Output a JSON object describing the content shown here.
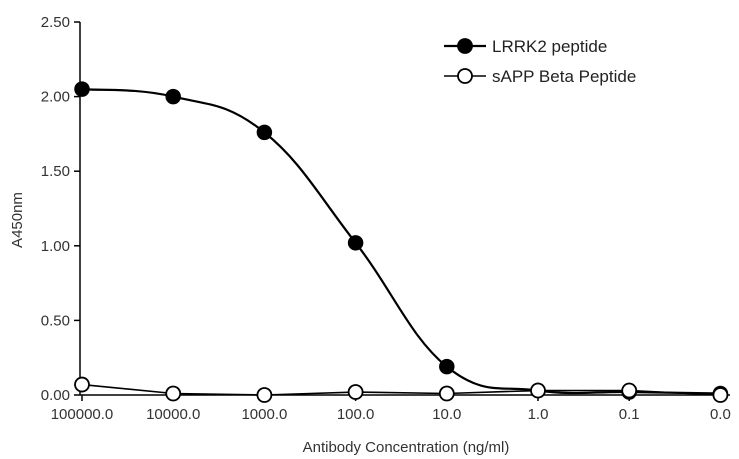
{
  "chart_data": {
    "type": "line",
    "xlabel": "Antibody Concentration (ng/ml)",
    "ylabel": "A450nm",
    "categories": [
      "100000.0",
      "10000.0",
      "1000.0",
      "100.0",
      "10.0",
      "1.0",
      "0.1",
      "0.0"
    ],
    "ylim": [
      0,
      2.5
    ],
    "yticks": [
      "0.00",
      "0.50",
      "1.00",
      "1.50",
      "2.00",
      "2.50"
    ],
    "ytick_values": [
      0,
      0.5,
      1.0,
      1.5,
      2.0,
      2.5
    ],
    "grid": false,
    "legend_position": "top-right",
    "series": [
      {
        "name": "LRRK2 peptide",
        "marker": "filled-circle",
        "color": "#000000",
        "smooth": true,
        "values": [
          2.05,
          2.0,
          1.76,
          1.02,
          0.19,
          0.03,
          0.02,
          0.01
        ]
      },
      {
        "name": "sAPP Beta Peptide",
        "marker": "open-circle",
        "color": "#000000",
        "smooth": false,
        "values": [
          0.07,
          0.01,
          0.0,
          0.02,
          0.01,
          0.03,
          0.03,
          0.0
        ]
      }
    ]
  }
}
